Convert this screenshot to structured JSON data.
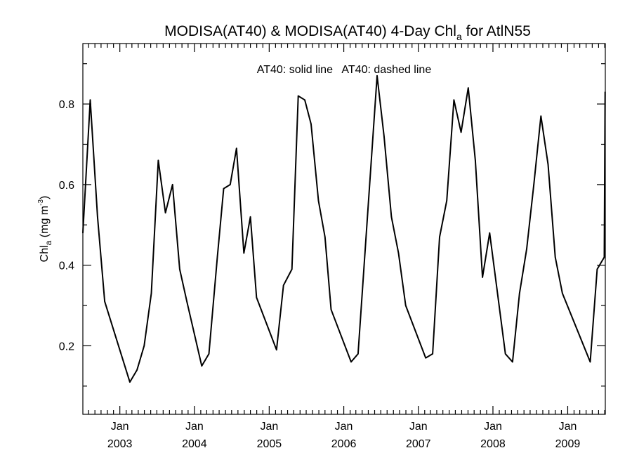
{
  "chart_data": {
    "type": "line",
    "title": {
      "prefix": "MODISA(AT40) & MODISA(AT40) 4-Day Chl",
      "subscript": "a",
      "suffix": " for AtlN55"
    },
    "ylabel": {
      "base": "Chl",
      "subscript": "a",
      "unit_prefix": " (mg m",
      "superscript": "-3",
      "unit_suffix": ")"
    },
    "annotation": "AT40: solid line   AT40: dashed line",
    "xlim": [
      "2002-07-04",
      "2009-07-04"
    ],
    "ylim": [
      0.03,
      0.95
    ],
    "y_ticks": [
      {
        "value": 0.2,
        "label": "0.2"
      },
      {
        "value": 0.4,
        "label": "0.4"
      },
      {
        "value": 0.6,
        "label": "0.6"
      },
      {
        "value": 0.8,
        "label": "0.8"
      }
    ],
    "y_minor_step": 0.1,
    "x_ticks": [
      {
        "date": "2003-01-01",
        "month": "Jan",
        "year": "2003"
      },
      {
        "date": "2004-01-01",
        "month": "Jan",
        "year": "2004"
      },
      {
        "date": "2005-01-01",
        "month": "Jan",
        "year": "2005"
      },
      {
        "date": "2006-01-01",
        "month": "Jan",
        "year": "2006"
      },
      {
        "date": "2007-01-01",
        "month": "Jan",
        "year": "2007"
      },
      {
        "date": "2008-01-01",
        "month": "Jan",
        "year": "2008"
      },
      {
        "date": "2009-01-01",
        "month": "Jan",
        "year": "2009"
      }
    ],
    "grid": false,
    "series": [
      {
        "style": "solid",
        "color": "#000000",
        "points": [
          [
            "2002-07-04",
            0.48
          ],
          [
            "2002-08-09",
            0.81
          ],
          [
            "2002-09-14",
            0.52
          ],
          [
            "2002-10-19",
            0.31
          ],
          [
            "2003-02-19",
            0.11
          ],
          [
            "2003-03-26",
            0.14
          ],
          [
            "2003-04-30",
            0.2
          ],
          [
            "2003-06-04",
            0.33
          ],
          [
            "2003-07-08",
            0.66
          ],
          [
            "2003-08-12",
            0.53
          ],
          [
            "2003-09-16",
            0.6
          ],
          [
            "2003-10-21",
            0.39
          ],
          [
            "2003-11-25",
            0.31
          ],
          [
            "2004-02-06",
            0.15
          ],
          [
            "2004-03-12",
            0.18
          ],
          [
            "2004-04-22",
            0.42
          ],
          [
            "2004-05-23",
            0.59
          ],
          [
            "2004-06-24",
            0.6
          ],
          [
            "2004-07-25",
            0.69
          ],
          [
            "2004-08-30",
            0.43
          ],
          [
            "2004-10-01",
            0.52
          ],
          [
            "2004-10-31",
            0.32
          ],
          [
            "2005-02-06",
            0.19
          ],
          [
            "2005-03-12",
            0.35
          ],
          [
            "2005-04-22",
            0.39
          ],
          [
            "2005-05-23",
            0.82
          ],
          [
            "2005-06-24",
            0.81
          ],
          [
            "2005-07-25",
            0.75
          ],
          [
            "2005-08-30",
            0.56
          ],
          [
            "2005-10-01",
            0.47
          ],
          [
            "2005-10-31",
            0.29
          ],
          [
            "2006-02-06",
            0.16
          ],
          [
            "2006-03-12",
            0.18
          ],
          [
            "2006-06-13",
            0.87
          ],
          [
            "2006-07-17",
            0.72
          ],
          [
            "2006-08-22",
            0.52
          ],
          [
            "2006-09-26",
            0.43
          ],
          [
            "2006-10-31",
            0.3
          ],
          [
            "2007-02-06",
            0.17
          ],
          [
            "2007-03-12",
            0.18
          ],
          [
            "2007-04-15",
            0.47
          ],
          [
            "2007-05-20",
            0.56
          ],
          [
            "2007-06-24",
            0.81
          ],
          [
            "2007-07-29",
            0.73
          ],
          [
            "2007-09-02",
            0.84
          ],
          [
            "2007-10-07",
            0.66
          ],
          [
            "2007-11-11",
            0.37
          ],
          [
            "2007-12-16",
            0.48
          ],
          [
            "2008-03-02",
            0.18
          ],
          [
            "2008-04-06",
            0.16
          ],
          [
            "2008-05-10",
            0.33
          ],
          [
            "2008-06-14",
            0.44
          ],
          [
            "2008-07-19",
            0.6
          ],
          [
            "2008-08-23",
            0.77
          ],
          [
            "2008-09-27",
            0.65
          ],
          [
            "2008-11-01",
            0.42
          ],
          [
            "2008-12-06",
            0.33
          ],
          [
            "2009-04-21",
            0.16
          ],
          [
            "2009-05-25",
            0.39
          ],
          [
            "2009-06-29",
            0.42
          ],
          [
            "2009-07-03",
            0.83
          ]
        ]
      }
    ]
  }
}
